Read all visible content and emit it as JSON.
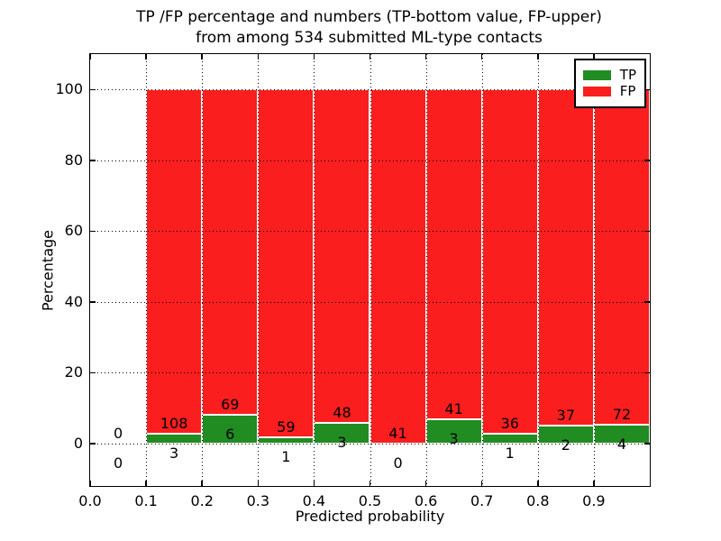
{
  "chart_data": {
    "type": "bar",
    "stacked": true,
    "title_line1": "TP /FP percentage and numbers (TP-bottom value, FP-upper)",
    "title_line2": "from among 534 submitted ML-type contacts",
    "xlabel": "Predicted probability",
    "ylabel": "Percentage",
    "xlim": [
      0.0,
      1.0
    ],
    "ylim": [
      -12,
      110
    ],
    "grid": "dotted",
    "legend_position": "upper right",
    "xtick_labels": [
      "0.0",
      "0.1",
      "0.2",
      "0.3",
      "0.4",
      "0.5",
      "0.6",
      "0.7",
      "0.8",
      "0.9"
    ],
    "xtick_values": [
      0.0,
      0.1,
      0.2,
      0.3,
      0.4,
      0.5,
      0.6,
      0.7,
      0.8,
      0.9
    ],
    "ytick_labels": [
      "0",
      "20",
      "40",
      "60",
      "80",
      "100"
    ],
    "ytick_values": [
      0,
      20,
      40,
      60,
      80,
      100
    ],
    "total_contacts": 534,
    "series": [
      {
        "name": "TP",
        "color": "#218c21"
      },
      {
        "name": "FP",
        "color": "#fa1e1e"
      }
    ],
    "bins": [
      {
        "range": "0.0-0.1",
        "tp": 0,
        "fp": 0,
        "tp_pct": 0,
        "fp_pct": 0,
        "bar": false
      },
      {
        "range": "0.1-0.2",
        "tp": 3,
        "fp": 108,
        "tp_pct": 2.703,
        "fp_pct": 97.297,
        "bar": true
      },
      {
        "range": "0.2-0.3",
        "tp": 6,
        "fp": 69,
        "tp_pct": 8.0,
        "fp_pct": 92.0,
        "bar": true
      },
      {
        "range": "0.3-0.4",
        "tp": 1,
        "fp": 59,
        "tp_pct": 1.667,
        "fp_pct": 98.333,
        "bar": true
      },
      {
        "range": "0.4-0.5",
        "tp": 3,
        "fp": 48,
        "tp_pct": 5.882,
        "fp_pct": 94.118,
        "bar": true
      },
      {
        "range": "0.5-0.6",
        "tp": 0,
        "fp": 41,
        "tp_pct": 0,
        "fp_pct": 100.0,
        "bar": true
      },
      {
        "range": "0.6-0.7",
        "tp": 3,
        "fp": 41,
        "tp_pct": 6.818,
        "fp_pct": 93.182,
        "bar": true
      },
      {
        "range": "0.7-0.8",
        "tp": 1,
        "fp": 36,
        "tp_pct": 2.703,
        "fp_pct": 97.297,
        "bar": true
      },
      {
        "range": "0.8-0.9",
        "tp": 2,
        "fp": 37,
        "tp_pct": 5.128,
        "fp_pct": 94.872,
        "bar": true
      },
      {
        "range": "0.9-1.0",
        "tp": 4,
        "fp": 72,
        "tp_pct": 5.263,
        "fp_pct": 94.737,
        "bar": true
      }
    ],
    "colors": {
      "tp_green": "#218c21",
      "fp_red": "#fa1e1e",
      "grid": "#000000",
      "text": "#000000",
      "background": "#ffffff"
    }
  }
}
